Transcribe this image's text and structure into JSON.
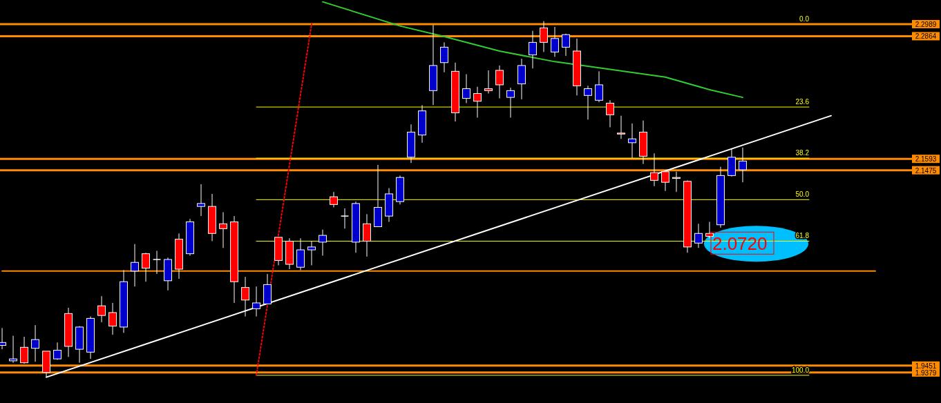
{
  "chart_data": {
    "type": "candlestick",
    "tick_labels": "y",
    "ylim": [
      1.9063,
      2.3239
    ],
    "yticks": [
      1.9379,
      1.9451,
      2.1475,
      2.1593,
      2.2864,
      2.2989
    ],
    "categories": [
      null,
      null,
      null,
      null,
      null,
      null,
      null,
      null,
      null,
      null,
      null,
      null,
      null,
      null,
      null,
      null,
      null,
      null,
      null,
      null,
      null,
      null,
      null,
      null,
      null,
      null,
      null,
      null,
      null,
      null,
      null,
      null,
      null,
      null,
      null,
      null,
      null,
      null,
      null,
      null,
      null,
      null,
      null,
      null,
      null,
      null,
      null,
      null,
      null,
      null,
      null,
      null,
      null,
      null,
      null,
      null,
      null,
      null,
      null,
      null,
      null,
      null,
      null,
      null,
      null,
      null,
      null,
      null,
      null,
      null,
      null,
      null,
      null,
      null,
      null,
      null,
      null,
      null,
      null,
      null,
      null,
      null,
      null,
      null,
      null
    ],
    "ohlc": [
      [
        1.966,
        1.984,
        1.962,
        1.969
      ],
      [
        1.95,
        1.976,
        1.948,
        1.952
      ],
      [
        1.964,
        1.975,
        1.947,
        1.948
      ],
      [
        1.963,
        1.987,
        1.949,
        1.972
      ],
      [
        1.96,
        1.96,
        1.933,
        1.938
      ],
      [
        1.952,
        1.969,
        1.951,
        1.961
      ],
      [
        1.999,
        2.005,
        1.954,
        1.965
      ],
      [
        1.962,
        1.986,
        1.948,
        1.985
      ],
      [
        1.959,
        1.996,
        1.952,
        1.994
      ],
      [
        2.007,
        2.017,
        1.99,
        1.997
      ],
      [
        2.0,
        2.01,
        1.977,
        1.986
      ],
      [
        1.985,
        2.044,
        1.979,
        2.032
      ],
      [
        2.043,
        2.071,
        2.027,
        2.052
      ],
      [
        2.061,
        2.062,
        2.032,
        2.046
      ],
      [
        2.055,
        2.064,
        2.04,
        2.055
      ],
      [
        2.033,
        2.057,
        2.023,
        2.055
      ],
      [
        2.076,
        2.082,
        2.035,
        2.045
      ],
      [
        2.061,
        2.097,
        2.059,
        2.094
      ],
      [
        2.11,
        2.133,
        2.1,
        2.113
      ],
      [
        2.11,
        2.123,
        2.074,
        2.082
      ],
      [
        2.092,
        2.104,
        2.067,
        2.087
      ],
      [
        2.094,
        2.1,
        2.01,
        2.032
      ],
      [
        2.026,
        2.037,
        1.996,
        2.013
      ],
      [
        2.004,
        2.027,
        1.996,
        2.01
      ],
      [
        2.009,
        2.04,
        2.009,
        2.029
      ],
      [
        2.078,
        2.078,
        2.049,
        2.054
      ],
      [
        2.074,
        2.077,
        2.045,
        2.05
      ],
      [
        2.047,
        2.077,
        2.044,
        2.065
      ],
      [
        2.065,
        2.074,
        2.049,
        2.068
      ],
      [
        2.073,
        2.086,
        2.059,
        2.08
      ],
      [
        2.12,
        2.125,
        2.109,
        2.112
      ],
      [
        2.1,
        2.108,
        2.087,
        2.1
      ],
      [
        2.073,
        2.115,
        2.062,
        2.113
      ],
      [
        2.092,
        2.102,
        2.058,
        2.074
      ],
      [
        2.089,
        2.153,
        2.089,
        2.109
      ],
      [
        2.1,
        2.129,
        2.094,
        2.123
      ],
      [
        2.115,
        2.142,
        2.112,
        2.14
      ],
      [
        2.161,
        2.195,
        2.155,
        2.187
      ],
      [
        2.184,
        2.215,
        2.176,
        2.209
      ],
      [
        2.23,
        2.298,
        2.215,
        2.256
      ],
      [
        2.259,
        2.28,
        2.249,
        2.275
      ],
      [
        2.25,
        2.259,
        2.198,
        2.207
      ],
      [
        2.222,
        2.247,
        2.217,
        2.232
      ],
      [
        2.227,
        2.234,
        2.202,
        2.219
      ],
      [
        2.232,
        2.251,
        2.227,
        2.23
      ],
      [
        2.251,
        2.256,
        2.222,
        2.236
      ],
      [
        2.223,
        2.233,
        2.202,
        2.23
      ],
      [
        2.237,
        2.263,
        2.221,
        2.256
      ],
      [
        2.267,
        2.292,
        2.253,
        2.28
      ],
      [
        2.295,
        2.302,
        2.27,
        2.28
      ],
      [
        2.27,
        2.296,
        2.265,
        2.284
      ],
      [
        2.275,
        2.289,
        2.266,
        2.288
      ],
      [
        2.271,
        2.284,
        2.225,
        2.235
      ],
      [
        2.225,
        2.235,
        2.2,
        2.232
      ],
      [
        2.22,
        2.25,
        2.218,
        2.236
      ],
      [
        2.217,
        2.22,
        2.192,
        2.205
      ],
      [
        2.186,
        2.204,
        2.18,
        2.185
      ],
      [
        2.176,
        2.196,
        2.16,
        2.18
      ],
      [
        2.187,
        2.199,
        2.154,
        2.162
      ],
      [
        2.145,
        2.165,
        2.131,
        2.137
      ],
      [
        2.146,
        2.146,
        2.126,
        2.135
      ],
      [
        2.14,
        2.146,
        2.125,
        2.139
      ],
      [
        2.136,
        2.137,
        2.062,
        2.068
      ],
      [
        2.072,
        2.092,
        2.067,
        2.082
      ],
      [
        2.082,
        2.094,
        2.077,
        2.079
      ],
      [
        2.091,
        2.151,
        2.088,
        2.142
      ],
      [
        2.142,
        2.17,
        2.141,
        2.161
      ],
      [
        2.148,
        2.171,
        2.135,
        2.157
      ],
      null,
      null,
      null,
      null,
      null,
      null,
      null,
      null,
      null,
      null,
      null,
      null,
      null,
      null,
      null,
      null,
      null
    ],
    "colors": [
      "#0000cc",
      "#0000cc",
      "#ff0000",
      "#0000cc",
      "#ff0000",
      "#0000cc",
      "#ff0000",
      "#0000cc",
      "#0000cc",
      "#ff0000",
      "#ff0000",
      "#0000cc",
      "#0000cc",
      "#ff0000",
      "#ffffff",
      "#0000cc",
      "#ff0000",
      "#0000cc",
      "#0000cc",
      "#ff0000",
      "#ff0000",
      "#ff0000",
      "#ff0000",
      "#0000cc",
      "#0000cc",
      "#ff0000",
      "#ff0000",
      "#0000cc",
      "#0000cc",
      "#0000cc",
      "#ff0000",
      "#ffffff",
      "#0000cc",
      "#ff0000",
      "#0000cc",
      "#0000cc",
      "#0000cc",
      "#0000cc",
      "#0000cc",
      "#0000cc",
      "#0000cc",
      "#ff0000",
      "#0000cc",
      "#ff0000",
      "#ff0000",
      "#ff0000",
      "#0000cc",
      "#0000cc",
      "#0000cc",
      "#ff0000",
      "#0000cc",
      "#0000cc",
      "#ff0000",
      "#0000cc",
      "#0000cc",
      "#ff0000",
      "#ff0000",
      "#0000cc",
      "#ff0000",
      "#ff0000",
      "#ff0000",
      "#ff0000",
      "#ff0000",
      "#0000cc",
      "#ff0000",
      "#0000cc",
      "#0000cc",
      "#0000cc",
      null,
      null,
      null,
      null,
      null,
      null,
      null,
      null,
      null,
      null,
      null,
      null,
      null,
      null,
      null,
      null,
      null
    ],
    "series": [
      {
        "type": "line",
        "color": "#ffff00",
        "name": "23.6",
        "values": [
          null,
          null,
          null,
          null,
          null,
          null,
          null,
          null,
          null,
          null,
          null,
          null,
          null,
          null,
          null,
          null,
          null,
          null,
          null,
          null,
          null,
          null,
          null,
          2.213,
          null,
          null,
          null,
          null,
          null,
          null,
          null,
          null,
          null,
          null,
          null,
          null,
          null,
          null,
          null,
          null,
          null,
          null,
          null,
          null,
          null,
          null,
          null,
          null,
          null,
          null,
          null,
          null,
          null,
          null,
          null,
          null,
          null,
          null,
          null,
          null,
          null,
          null,
          null,
          null,
          null,
          null,
          null,
          null,
          null,
          null,
          null,
          null,
          null,
          2.213,
          null,
          null,
          null,
          null,
          null,
          null,
          null,
          null,
          null,
          null,
          null
        ]
      },
      {
        "type": "line",
        "color": "#ffff00",
        "name": "38.2",
        "values": [
          null,
          null,
          null,
          null,
          null,
          null,
          null,
          null,
          null,
          null,
          null,
          null,
          null,
          null,
          null,
          null,
          null,
          null,
          null,
          null,
          null,
          null,
          null,
          2.16,
          null,
          null,
          null,
          null,
          null,
          null,
          null,
          null,
          null,
          null,
          null,
          null,
          null,
          null,
          null,
          null,
          null,
          null,
          null,
          null,
          null,
          null,
          null,
          null,
          null,
          null,
          null,
          null,
          null,
          null,
          null,
          null,
          null,
          null,
          null,
          null,
          null,
          null,
          null,
          null,
          null,
          null,
          null,
          null,
          null,
          null,
          null,
          null,
          null,
          2.16,
          null,
          null,
          null,
          null,
          null,
          null,
          null,
          null,
          null,
          null,
          null
        ]
      },
      {
        "type": "line",
        "color": "#ffff00",
        "name": "50.0",
        "values": [
          null,
          null,
          null,
          null,
          null,
          null,
          null,
          null,
          null,
          null,
          null,
          null,
          null,
          null,
          null,
          null,
          null,
          null,
          null,
          null,
          null,
          null,
          null,
          2.117,
          null,
          null,
          null,
          null,
          null,
          null,
          null,
          null,
          null,
          null,
          null,
          null,
          null,
          null,
          null,
          null,
          null,
          null,
          null,
          null,
          null,
          null,
          null,
          null,
          null,
          null,
          null,
          null,
          null,
          null,
          null,
          null,
          null,
          null,
          null,
          null,
          null,
          null,
          null,
          null,
          null,
          null,
          null,
          null,
          null,
          null,
          null,
          null,
          null,
          2.117,
          null,
          null,
          null,
          null,
          null,
          null,
          null,
          null,
          null,
          null,
          null
        ]
      },
      {
        "type": "line",
        "color": "#ffff00",
        "name": "61.8",
        "values": [
          null,
          null,
          null,
          null,
          null,
          null,
          null,
          null,
          null,
          null,
          null,
          null,
          null,
          null,
          null,
          null,
          null,
          null,
          null,
          null,
          null,
          null,
          null,
          2.074,
          null,
          null,
          null,
          null,
          null,
          null,
          null,
          null,
          null,
          null,
          null,
          null,
          null,
          null,
          null,
          null,
          null,
          null,
          null,
          null,
          null,
          null,
          null,
          null,
          null,
          null,
          null,
          null,
          null,
          null,
          null,
          null,
          null,
          null,
          null,
          null,
          null,
          null,
          null,
          null,
          null,
          null,
          null,
          null,
          null,
          null,
          null,
          null,
          null,
          2.074,
          null,
          null,
          null,
          null,
          null,
          null,
          null,
          null,
          null,
          null,
          null
        ]
      },
      {
        "type": "line",
        "color": "#ffff00",
        "name": "100.0",
        "values": [
          null,
          null,
          null,
          null,
          null,
          null,
          null,
          null,
          null,
          null,
          null,
          null,
          null,
          null,
          null,
          null,
          null,
          null,
          null,
          null,
          null,
          null,
          null,
          1.935,
          null,
          null,
          null,
          null,
          null,
          null,
          null,
          null,
          null,
          null,
          null,
          null,
          null,
          null,
          null,
          null,
          null,
          null,
          null,
          null,
          null,
          null,
          null,
          null,
          null,
          null,
          null,
          null,
          null,
          null,
          null,
          null,
          null,
          null,
          null,
          null,
          null,
          null,
          null,
          null,
          null,
          null,
          null,
          null,
          null,
          null,
          null,
          null,
          null,
          1.935,
          null,
          null,
          null,
          null,
          null,
          null,
          null,
          null,
          null,
          null,
          null
        ]
      },
      {
        "type": "line",
        "color": "#ff8c00",
        "values": [
          2.043,
          null,
          null,
          null,
          null,
          null,
          null,
          null,
          null,
          null,
          null,
          null,
          null,
          null,
          null,
          null,
          null,
          null,
          null,
          null,
          null,
          null,
          null,
          null,
          null,
          null,
          null,
          null,
          null,
          null,
          null,
          null,
          null,
          null,
          null,
          null,
          null,
          null,
          null,
          null,
          null,
          null,
          null,
          null,
          null,
          null,
          null,
          null,
          null,
          null,
          null,
          null,
          null,
          null,
          null,
          null,
          null,
          null,
          null,
          null,
          null,
          null,
          null,
          null,
          null,
          null,
          null,
          null,
          null,
          null,
          null,
          null,
          null,
          null,
          null,
          null,
          null,
          null,
          null,
          2.043,
          null,
          null,
          null,
          null,
          null
        ]
      },
      {
        "type": "line",
        "color": "#ff0000",
        "line_style": "dotted",
        "values": [
          null,
          null,
          null,
          null,
          null,
          null,
          null,
          null,
          null,
          null,
          null,
          null,
          null,
          null,
          null,
          null,
          null,
          null,
          null,
          null,
          null,
          null,
          null,
          1.935,
          null,
          null,
          null,
          null,
          2.299,
          null,
          null,
          null,
          null,
          null,
          null,
          null,
          null,
          null,
          null,
          null,
          null,
          null,
          null,
          null,
          null,
          null,
          null,
          null,
          null,
          null,
          null,
          null,
          null,
          null,
          null,
          null,
          null,
          null,
          null,
          null,
          null,
          null,
          null,
          null,
          null,
          null,
          null,
          null,
          null,
          null,
          null,
          null,
          null,
          null,
          null,
          null,
          null,
          null,
          null,
          null,
          null,
          null,
          null,
          null,
          null
        ]
      },
      {
        "type": "line",
        "color": "#ffffff",
        "values": [
          null,
          null,
          null,
          null,
          1.933,
          null,
          null,
          null,
          null,
          null,
          null,
          null,
          null,
          null,
          null,
          null,
          null,
          null,
          null,
          null,
          null,
          null,
          null,
          null,
          null,
          null,
          null,
          null,
          null,
          null,
          null,
          null,
          null,
          null,
          null,
          null,
          null,
          null,
          null,
          null,
          null,
          null,
          null,
          null,
          null,
          null,
          null,
          null,
          null,
          null,
          null,
          null,
          null,
          null,
          null,
          null,
          null,
          null,
          null,
          null,
          null,
          null,
          null,
          null,
          null,
          null,
          null,
          null,
          null,
          null,
          null,
          null,
          null,
          null,
          null,
          2.204,
          null,
          null,
          null,
          null,
          null,
          null,
          null,
          null,
          null
        ]
      },
      {
        "type": "line",
        "color": "#33cc33",
        "values": [
          null,
          null,
          null,
          null,
          null,
          null,
          null,
          null,
          null,
          null,
          null,
          null,
          null,
          null,
          null,
          null,
          null,
          null,
          null,
          null,
          null,
          null,
          null,
          null,
          null,
          null,
          null,
          null,
          null,
          2.322,
          null,
          null,
          null,
          null,
          null,
          null,
          2.297,
          null,
          null,
          null,
          2.286,
          null,
          null,
          null,
          null,
          2.271,
          null,
          null,
          null,
          null,
          2.26,
          null,
          null,
          null,
          null,
          2.252,
          null,
          null,
          null,
          null,
          2.244,
          null,
          null,
          null,
          2.231,
          null,
          null,
          2.223,
          null,
          null,
          null,
          null,
          null,
          null,
          null,
          null,
          null,
          null,
          null,
          null,
          null,
          null,
          null,
          null,
          null
        ]
      }
    ],
    "ref_lines": [
      {
        "axis": "y",
        "value": 2.2989,
        "color": "#ff8c00"
      },
      {
        "axis": "y",
        "value": 2.2864,
        "color": "#ff8c00"
      },
      {
        "axis": "y",
        "value": 2.1593,
        "color": "#ff8c00"
      },
      {
        "axis": "y",
        "value": 2.1475,
        "color": "#ff8c00"
      },
      {
        "axis": "y",
        "value": 1.9451,
        "color": "#ff8c00"
      },
      {
        "axis": "y",
        "value": 1.9379,
        "color": "#ff8c00"
      }
    ],
    "annotations": [
      {
        "text": "0.0",
        "y": 2.2989
      },
      {
        "text": "2.0720",
        "y": 2.072
      }
    ]
  }
}
